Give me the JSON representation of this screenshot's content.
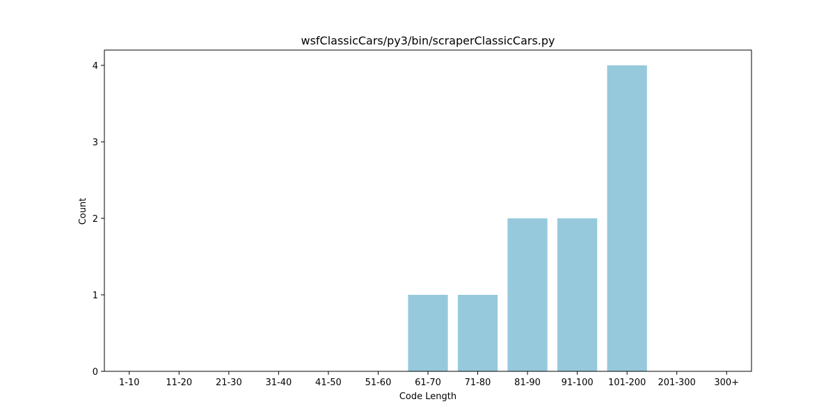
{
  "chart_data": {
    "type": "bar",
    "title": "wsfClassicCars/py3/bin/scraperClassicCars.py",
    "xlabel": "Code Length",
    "ylabel": "Count",
    "categories": [
      "1-10",
      "11-20",
      "21-30",
      "31-40",
      "41-50",
      "51-60",
      "61-70",
      "71-80",
      "81-90",
      "91-100",
      "101-200",
      "201-300",
      "300+"
    ],
    "values": [
      0,
      0,
      0,
      0,
      0,
      0,
      1,
      1,
      2,
      2,
      4,
      0,
      0
    ],
    "ylim": [
      0,
      4.2
    ],
    "yticks": [
      0,
      1,
      2,
      3,
      4
    ],
    "grid": false,
    "bar_color": "#96c9dc"
  }
}
